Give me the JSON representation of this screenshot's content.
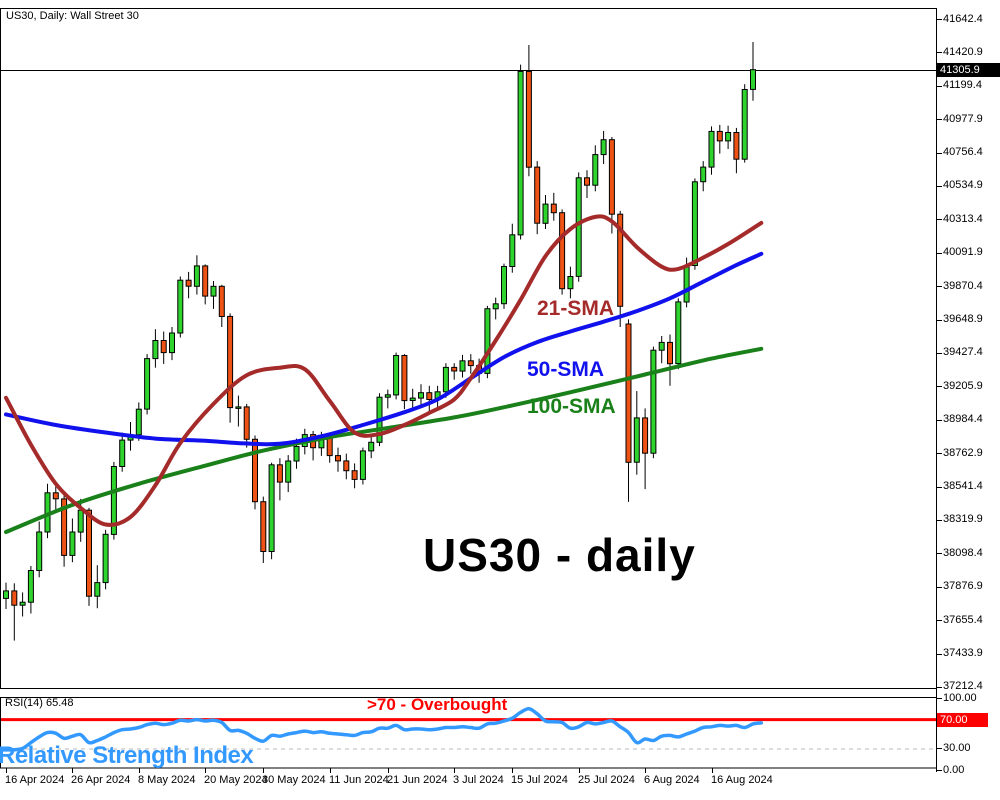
{
  "window": {
    "title": "US30, Daily:  Wall Street 30"
  },
  "chart_data": {
    "type": "candlestick",
    "symbol": "US30",
    "timeframe": "Daily",
    "description": "Wall Street 30",
    "title_label": "US30 - daily",
    "current_price": "41305.9",
    "colors": {
      "background": "#ffffff",
      "frame": "#000000",
      "candle_up": "#2ed32e",
      "candle_down": "#ee5214",
      "candle_border": "#000000",
      "sma21": "#a52a2a",
      "sma50": "#1111ee",
      "sma100": "#1a801a",
      "rsi_line": "#3399ff",
      "overbought_line": "#ff0000",
      "dashed_level": "#b8b8b8",
      "price_tag_bg": "#000000",
      "rsi_tag_bg": "#ff0000"
    },
    "price_axis": {
      "labels": [
        "41642.4",
        "41420.9",
        "41199.4",
        "40977.9",
        "40756.4",
        "40534.9",
        "40313.4",
        "40091.9",
        "39870.4",
        "39648.9",
        "39427.4",
        "39205.9",
        "38984.4",
        "38762.9",
        "38541.4",
        "38319.9",
        "38098.4",
        "37876.9",
        "37655.4",
        "37433.9",
        "37212.4"
      ]
    },
    "date_axis": {
      "labels": [
        {
          "text": "16 Apr 2024",
          "i": 0
        },
        {
          "text": "26 Apr 2024",
          "i": 8
        },
        {
          "text": "8 May 2024",
          "i": 16
        },
        {
          "text": "20 May 2024",
          "i": 24
        },
        {
          "text": "30 May 2024",
          "i": 31
        },
        {
          "text": "11 Jun 2024",
          "i": 39
        },
        {
          "text": "21 Jun 2024",
          "i": 46
        },
        {
          "text": "3 Jul 2024",
          "i": 54
        },
        {
          "text": "15 Jul 2024",
          "i": 61
        },
        {
          "text": "25 Jul 2024",
          "i": 69
        },
        {
          "text": "6 Aug 2024",
          "i": 77
        },
        {
          "text": "16 Aug 2024",
          "i": 85
        }
      ]
    },
    "candles": [
      [
        37800,
        37905,
        37730,
        37850
      ],
      [
        37850,
        37900,
        37520,
        37755
      ],
      [
        37755,
        37840,
        37680,
        37775
      ],
      [
        37775,
        38015,
        37700,
        37985
      ],
      [
        37985,
        38310,
        37940,
        38240
      ],
      [
        38240,
        38560,
        38200,
        38500
      ],
      [
        38500,
        38555,
        38370,
        38460
      ],
      [
        38460,
        38490,
        38010,
        38085
      ],
      [
        38085,
        38330,
        38040,
        38240
      ],
      [
        38240,
        38460,
        38175,
        38385
      ],
      [
        38385,
        38400,
        37750,
        37815
      ],
      [
        37815,
        38020,
        37735,
        37905
      ],
      [
        37905,
        38255,
        37860,
        38225
      ],
      [
        38225,
        38705,
        38190,
        38675
      ],
      [
        38675,
        38900,
        38640,
        38850
      ],
      [
        38850,
        38970,
        38780,
        38885
      ],
      [
        38885,
        39100,
        38845,
        39055
      ],
      [
        39055,
        39420,
        39020,
        39390
      ],
      [
        39390,
        39585,
        39330,
        39510
      ],
      [
        39510,
        39570,
        39355,
        39430
      ],
      [
        39430,
        39600,
        39380,
        39560
      ],
      [
        39560,
        39935,
        39530,
        39910
      ],
      [
        39910,
        39965,
        39790,
        39870
      ],
      [
        39870,
        40075,
        39815,
        40005
      ],
      [
        40005,
        40015,
        39750,
        39805
      ],
      [
        39805,
        39905,
        39720,
        39870
      ],
      [
        39870,
        39880,
        39600,
        39670
      ],
      [
        39670,
        39690,
        38965,
        39065
      ],
      [
        39065,
        39145,
        38940,
        39070
      ],
      [
        39070,
        39090,
        38800,
        38855
      ],
      [
        38855,
        38880,
        38390,
        38441
      ],
      [
        38441,
        38475,
        38035,
        38111
      ],
      [
        38111,
        38700,
        38060,
        38686
      ],
      [
        38686,
        38730,
        38450,
        38571
      ],
      [
        38571,
        38750,
        38505,
        38711
      ],
      [
        38711,
        38860,
        38660,
        38807
      ],
      [
        38807,
        38925,
        38755,
        38886
      ],
      [
        38886,
        38910,
        38715,
        38799
      ],
      [
        38799,
        38905,
        38745,
        38868
      ],
      [
        38868,
        38890,
        38700,
        38747
      ],
      [
        38747,
        38800,
        38640,
        38712
      ],
      [
        38712,
        38760,
        38590,
        38647
      ],
      [
        38647,
        38695,
        38530,
        38589
      ],
      [
        38589,
        38800,
        38555,
        38778
      ],
      [
        38778,
        38870,
        38730,
        38835
      ],
      [
        38835,
        39160,
        38810,
        39134
      ],
      [
        39134,
        39185,
        39060,
        39150
      ],
      [
        39150,
        39430,
        39120,
        39411
      ],
      [
        39411,
        39420,
        39055,
        39112
      ],
      [
        39112,
        39190,
        39050,
        39128
      ],
      [
        39128,
        39220,
        39080,
        39164
      ],
      [
        39164,
        39210,
        39030,
        39119
      ],
      [
        39119,
        39210,
        39060,
        39170
      ],
      [
        39170,
        39360,
        39130,
        39332
      ],
      [
        39332,
        39360,
        39250,
        39308
      ],
      [
        39308,
        39415,
        39265,
        39376
      ],
      [
        39376,
        39420,
        39290,
        39344
      ],
      [
        39344,
        39390,
        39230,
        39292
      ],
      [
        39292,
        39740,
        39260,
        39721
      ],
      [
        39721,
        39795,
        39650,
        39754
      ],
      [
        39754,
        40020,
        39720,
        40001
      ],
      [
        40001,
        40285,
        39960,
        40211
      ],
      [
        40211,
        41340,
        40180,
        41295
      ],
      [
        41295,
        41470,
        40600,
        40660
      ],
      [
        40660,
        40700,
        40215,
        40288
      ],
      [
        40288,
        40475,
        40250,
        40415
      ],
      [
        40415,
        40490,
        40305,
        40358
      ],
      [
        40358,
        40380,
        39815,
        39854
      ],
      [
        39854,
        40000,
        39790,
        39935
      ],
      [
        39935,
        40625,
        39900,
        40589
      ],
      [
        40589,
        40640,
        40455,
        40540
      ],
      [
        40540,
        40805,
        40500,
        40743
      ],
      [
        40743,
        40900,
        40680,
        40842
      ],
      [
        40842,
        40860,
        40220,
        40348
      ],
      [
        40348,
        40370,
        39600,
        39737
      ],
      [
        39620,
        39650,
        38440,
        38703
      ],
      [
        38703,
        39175,
        38620,
        38997
      ],
      [
        38997,
        39060,
        38525,
        38763
      ],
      [
        38763,
        39470,
        38730,
        39446
      ],
      [
        39446,
        39540,
        39360,
        39498
      ],
      [
        39498,
        39550,
        39210,
        39357
      ],
      [
        39357,
        39790,
        39320,
        39766
      ],
      [
        39766,
        40060,
        39730,
        40008
      ],
      [
        40008,
        40585,
        39980,
        40563
      ],
      [
        40563,
        40700,
        40500,
        40660
      ],
      [
        40660,
        40930,
        40610,
        40897
      ],
      [
        40897,
        40940,
        40750,
        40834
      ],
      [
        40834,
        40935,
        40780,
        40890
      ],
      [
        40890,
        40920,
        40620,
        40713
      ],
      [
        40713,
        41210,
        40690,
        41175
      ],
      [
        41175,
        41490,
        41100,
        41305.9
      ]
    ],
    "sma_labels": [
      {
        "text": "21-SMA",
        "color": "#a52a2a"
      },
      {
        "text": "50-SMA",
        "color": "#1111ee"
      },
      {
        "text": "100-SMA",
        "color": "#1a801a"
      }
    ],
    "sma21": [
      [
        0,
        39130
      ],
      [
        3,
        38820
      ],
      [
        6,
        38560
      ],
      [
        9,
        38400
      ],
      [
        12,
        38290
      ],
      [
        15,
        38340
      ],
      [
        18,
        38550
      ],
      [
        21,
        38830
      ],
      [
        25,
        39090
      ],
      [
        29,
        39280
      ],
      [
        33,
        39330
      ],
      [
        36,
        39320
      ],
      [
        39,
        39110
      ],
      [
        42,
        38900
      ],
      [
        45,
        38890
      ],
      [
        48,
        38950
      ],
      [
        51,
        39030
      ],
      [
        54,
        39120
      ],
      [
        56,
        39260
      ],
      [
        59,
        39510
      ],
      [
        62,
        39780
      ],
      [
        65,
        40070
      ],
      [
        68,
        40250
      ],
      [
        71,
        40330
      ],
      [
        73,
        40300
      ],
      [
        76,
        40130
      ],
      [
        79,
        40000
      ],
      [
        81,
        39985
      ],
      [
        84,
        40060
      ],
      [
        87,
        40150
      ],
      [
        91,
        40290
      ]
    ],
    "sma50": [
      [
        0,
        39020
      ],
      [
        6,
        38950
      ],
      [
        12,
        38900
      ],
      [
        18,
        38860
      ],
      [
        24,
        38845
      ],
      [
        28,
        38830
      ],
      [
        33,
        38825
      ],
      [
        38,
        38875
      ],
      [
        43,
        38950
      ],
      [
        48,
        39035
      ],
      [
        52,
        39120
      ],
      [
        56,
        39260
      ],
      [
        60,
        39400
      ],
      [
        64,
        39500
      ],
      [
        68,
        39570
      ],
      [
        72,
        39635
      ],
      [
        76,
        39705
      ],
      [
        80,
        39790
      ],
      [
        84,
        39900
      ],
      [
        88,
        40010
      ],
      [
        91,
        40085
      ]
    ],
    "sma100": [
      [
        0,
        38240
      ],
      [
        8,
        38420
      ],
      [
        16,
        38560
      ],
      [
        24,
        38680
      ],
      [
        31,
        38780
      ],
      [
        39,
        38870
      ],
      [
        46,
        38930
      ],
      [
        54,
        39000
      ],
      [
        61,
        39080
      ],
      [
        69,
        39180
      ],
      [
        77,
        39285
      ],
      [
        85,
        39390
      ],
      [
        91,
        39455
      ]
    ],
    "rsi": {
      "label": "RSI(14) 65.48",
      "period": 14,
      "current_value": 65.48,
      "overbought_label": ">70 - Overbought",
      "panel_label": "Relative Strength Index",
      "overbought_level": 70,
      "oversold_level": 30,
      "levels": [
        {
          "text": "100.00",
          "value": 100,
          "highlight": false
        },
        {
          "text": "70.00",
          "value": 70,
          "highlight": true
        },
        {
          "text": "30.00",
          "value": 30,
          "highlight": false
        },
        {
          "text": "0.00",
          "value": 0,
          "highlight": false
        }
      ],
      "values": [
        28,
        28,
        30,
        38,
        46,
        52,
        51,
        44,
        47,
        49,
        38,
        41,
        46,
        52,
        56,
        57,
        59,
        63,
        65,
        63,
        65,
        69,
        68,
        70,
        68,
        69,
        66,
        55,
        55,
        51,
        44,
        40,
        48,
        47,
        50,
        52,
        54,
        52,
        53,
        51,
        50,
        49,
        48,
        52,
        53,
        58,
        58,
        62,
        56,
        57,
        57,
        56,
        57,
        59,
        59,
        60,
        59,
        58,
        64,
        65,
        68,
        72,
        80,
        85,
        78,
        68,
        67,
        66,
        58,
        60,
        66,
        64,
        66,
        68,
        60,
        52,
        38,
        43,
        41,
        47,
        48,
        46,
        50,
        54,
        59,
        60,
        62,
        61,
        62,
        59,
        64,
        65.48
      ]
    }
  }
}
